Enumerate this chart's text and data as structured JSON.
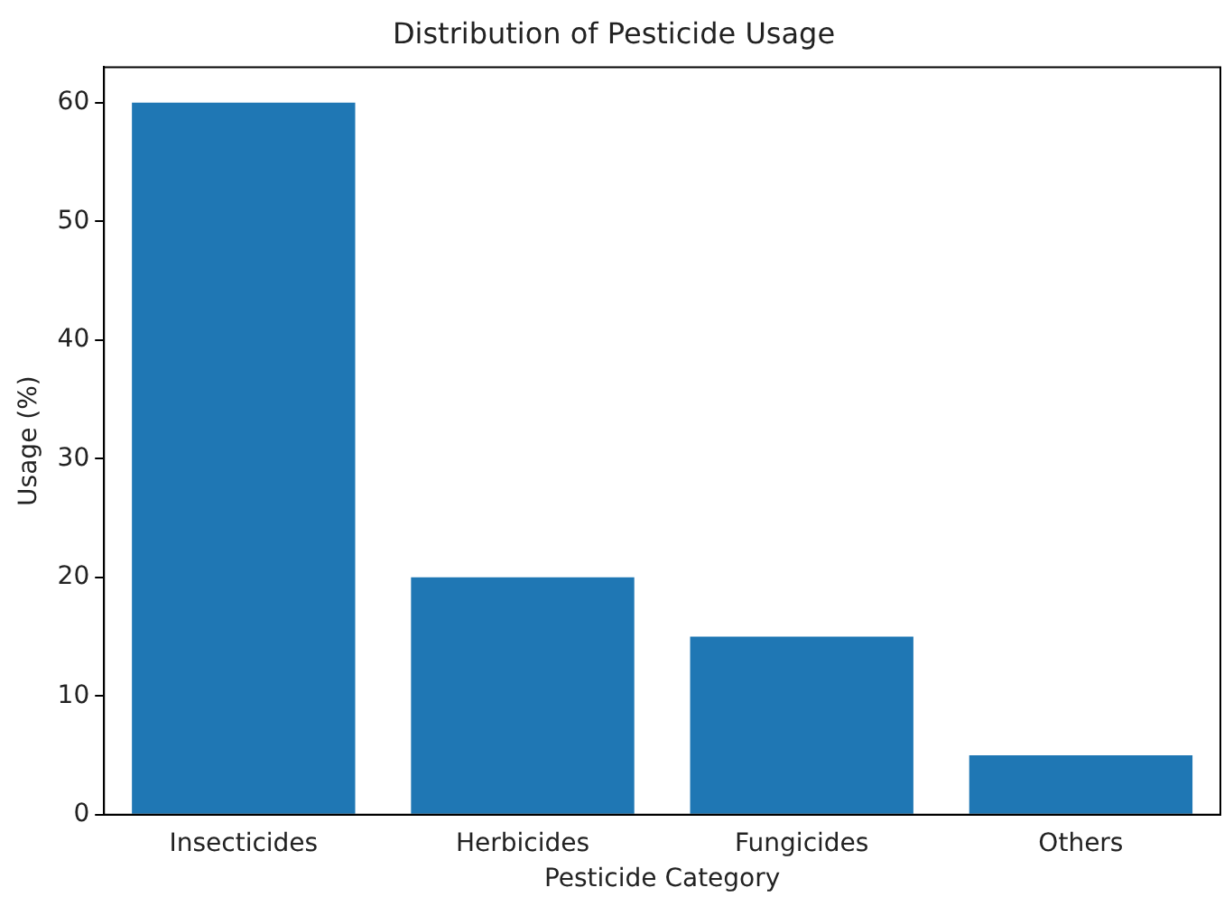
{
  "chart_data": {
    "type": "bar",
    "title": "Distribution of Pesticide Usage",
    "xlabel": "Pesticide Category",
    "ylabel": "Usage (%)",
    "categories": [
      "Insecticides",
      "Herbicides",
      "Fungicides",
      "Others"
    ],
    "values": [
      60,
      20,
      15,
      5
    ],
    "color": "#1f77b4",
    "ylim": [
      0,
      63
    ],
    "yticks": [
      0,
      10,
      20,
      30,
      40,
      50,
      60
    ],
    "grid": false,
    "legend": false
  }
}
